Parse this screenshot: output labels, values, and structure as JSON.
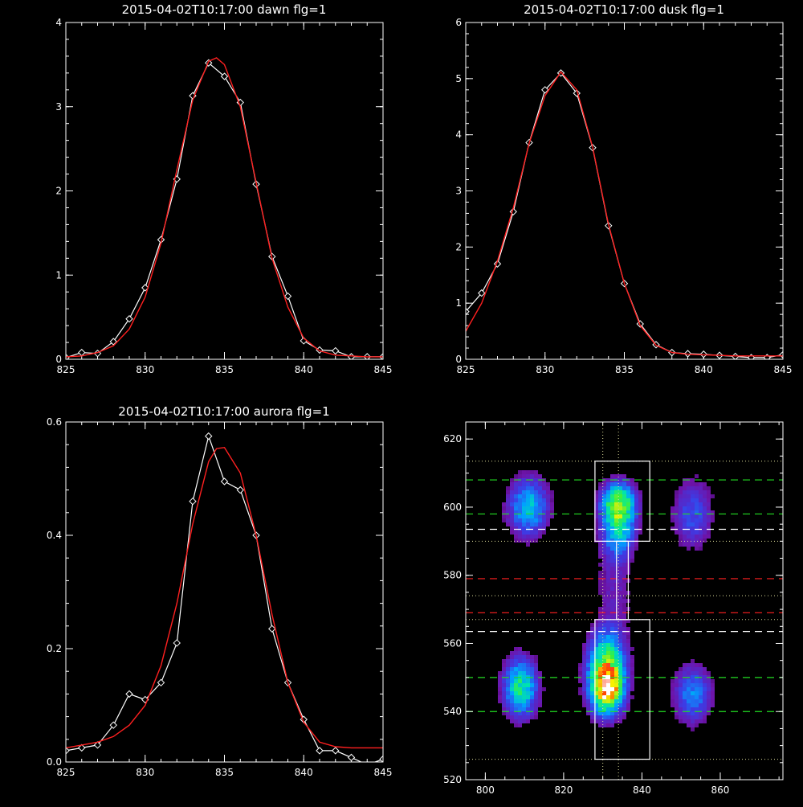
{
  "colors": {
    "background": "#000000",
    "axes": "#ffffff",
    "observed": "#ffffff",
    "fit": "#ff2020",
    "guide_green": "#22dd22",
    "guide_white": "#ffffff",
    "guide_red": "#ff2020",
    "box": "#ffffff"
  },
  "chart_data": [
    {
      "id": "dawn",
      "type": "line",
      "title": "2015-04-02T10:17:00 dawn flg=1",
      "xlim": [
        825,
        845
      ],
      "ylim": [
        0,
        4
      ],
      "xticks": [
        825,
        830,
        835,
        840,
        845
      ],
      "yticks": [
        0,
        1,
        2,
        3,
        4
      ],
      "xtick_labels": [
        "825",
        "830",
        "835",
        "840",
        "845"
      ],
      "ytick_labels": [
        "0",
        "1",
        "2",
        "3",
        "4"
      ],
      "series": [
        {
          "role": "observed",
          "markers": "diamond",
          "x": [
            825,
            826,
            827,
            828,
            829,
            830,
            831,
            832,
            833,
            834,
            835,
            836,
            837,
            838,
            839,
            840,
            841,
            842,
            843,
            844,
            845
          ],
          "y": [
            0.02,
            0.08,
            0.07,
            0.21,
            0.48,
            0.85,
            1.42,
            2.14,
            3.13,
            3.52,
            3.36,
            3.05,
            2.08,
            1.22,
            0.75,
            0.22,
            0.11,
            0.1,
            0.03,
            0.03,
            0.03
          ]
        },
        {
          "role": "fit",
          "x": [
            825,
            826,
            827,
            828,
            829,
            830,
            831,
            832,
            833,
            834,
            834.5,
            835,
            836,
            837,
            838,
            839,
            840,
            841,
            842,
            843,
            844,
            845
          ],
          "y": [
            0.03,
            0.04,
            0.08,
            0.16,
            0.36,
            0.74,
            1.38,
            2.25,
            3.08,
            3.54,
            3.58,
            3.5,
            3.0,
            2.1,
            1.2,
            0.62,
            0.25,
            0.1,
            0.05,
            0.04,
            0.03,
            0.03
          ]
        }
      ]
    },
    {
      "id": "dusk",
      "type": "line",
      "title": "2015-04-02T10:17:00 dusk flg=1",
      "xlim": [
        825,
        845
      ],
      "ylim": [
        0,
        6
      ],
      "xticks": [
        825,
        830,
        835,
        840,
        845
      ],
      "yticks": [
        0,
        1,
        2,
        3,
        4,
        5,
        6
      ],
      "xtick_labels": [
        "825",
        "830",
        "835",
        "840",
        "845"
      ],
      "ytick_labels": [
        "0",
        "1",
        "2",
        "3",
        "4",
        "5",
        "6"
      ],
      "series": [
        {
          "role": "observed",
          "markers": "diamond",
          "x": [
            825,
            826,
            827,
            828,
            829,
            830,
            831,
            832,
            833,
            834,
            835,
            836,
            837,
            838,
            839,
            840,
            841,
            842,
            843,
            844,
            845
          ],
          "y": [
            0.85,
            1.18,
            1.7,
            2.63,
            3.86,
            4.8,
            5.1,
            4.74,
            3.77,
            2.38,
            1.35,
            0.63,
            0.26,
            0.12,
            0.1,
            0.09,
            0.07,
            0.05,
            0.03,
            0.03,
            0.08
          ]
        },
        {
          "role": "fit",
          "x": [
            825,
            826,
            827,
            828,
            829,
            830,
            831,
            832,
            833,
            834,
            835,
            836,
            837,
            838,
            839,
            840,
            841,
            842,
            843,
            844,
            845
          ],
          "y": [
            0.5,
            1.0,
            1.75,
            2.7,
            3.85,
            4.7,
            5.12,
            4.8,
            3.78,
            2.4,
            1.35,
            0.6,
            0.25,
            0.12,
            0.09,
            0.08,
            0.07,
            0.06,
            0.06,
            0.06,
            0.06
          ]
        }
      ]
    },
    {
      "id": "aurora",
      "type": "line",
      "title": "2015-04-02T10:17:00 aurora flg=1",
      "xlim": [
        825,
        845
      ],
      "ylim": [
        0,
        0.6
      ],
      "xticks": [
        825,
        830,
        835,
        840,
        845
      ],
      "yticks": [
        0,
        0.2,
        0.4,
        0.6
      ],
      "xtick_labels": [
        "825",
        "830",
        "835",
        "840",
        "845"
      ],
      "ytick_labels": [
        "0.0",
        "0.2",
        "0.4",
        "0.6"
      ],
      "series": [
        {
          "role": "observed",
          "markers": "diamond",
          "x": [
            825,
            826,
            827,
            828,
            829,
            830,
            831,
            832,
            833,
            834,
            835,
            836,
            837,
            838,
            839,
            840,
            841,
            842,
            843,
            844,
            845
          ],
          "y": [
            0.02,
            0.025,
            0.03,
            0.065,
            0.12,
            0.11,
            0.14,
            0.21,
            0.46,
            0.575,
            0.495,
            0.48,
            0.4,
            0.235,
            0.14,
            0.075,
            0.02,
            0.02,
            0.008,
            -0.005,
            0.005
          ]
        },
        {
          "role": "fit",
          "x": [
            825,
            826,
            827,
            828,
            829,
            830,
            831,
            832,
            833,
            834,
            834.5,
            835,
            836,
            837,
            838,
            839,
            840,
            841,
            842,
            843,
            844,
            845
          ],
          "y": [
            0.025,
            0.03,
            0.035,
            0.045,
            0.065,
            0.1,
            0.17,
            0.28,
            0.42,
            0.53,
            0.553,
            0.555,
            0.51,
            0.4,
            0.26,
            0.14,
            0.07,
            0.035,
            0.027,
            0.025,
            0.025,
            0.025
          ]
        }
      ]
    },
    {
      "id": "spectral-image",
      "type": "heatmap",
      "xlim": [
        795,
        876
      ],
      "ylim": [
        520,
        625
      ],
      "xticks": [
        800,
        820,
        840,
        860
      ],
      "yticks": [
        520,
        540,
        560,
        580,
        600,
        620
      ],
      "xtick_labels": [
        "800",
        "820",
        "840",
        "860"
      ],
      "ytick_labels": [
        "520",
        "540",
        "560",
        "580",
        "600",
        "620"
      ],
      "blobs": [
        {
          "x": 831,
          "y": 547,
          "sx": 2.5,
          "sy": 4.5,
          "amp": 1.0
        },
        {
          "x": 831,
          "y": 555,
          "sx": 2.8,
          "sy": 5.5,
          "amp": 0.45
        },
        {
          "x": 834,
          "y": 601,
          "sx": 2.5,
          "sy": 3.5,
          "amp": 0.6
        },
        {
          "x": 834,
          "y": 594,
          "sx": 2.5,
          "sy": 5.0,
          "amp": 0.35
        },
        {
          "x": 809,
          "y": 547,
          "sx": 2.5,
          "sy": 5.0,
          "amp": 0.45
        },
        {
          "x": 811,
          "y": 600,
          "sx": 3.0,
          "sy": 5.0,
          "amp": 0.32
        },
        {
          "x": 853,
          "y": 545,
          "sx": 2.8,
          "sy": 5.0,
          "amp": 0.22
        },
        {
          "x": 853,
          "y": 598,
          "sx": 3.0,
          "sy": 6.0,
          "amp": 0.15
        },
        {
          "x": 833,
          "y": 577,
          "sx": 3.0,
          "sy": 12.0,
          "amp": 0.06
        }
      ],
      "vlines_dotted": [
        830,
        834
      ],
      "hlines_green_dashed": [
        540,
        550,
        598,
        608
      ],
      "hlines_white_dashed": [
        563.5,
        593.5
      ],
      "hlines_red_dashed": [
        569,
        579
      ],
      "hlines_dotted": [
        526,
        567,
        574,
        590,
        613.5
      ],
      "boxes": [
        {
          "x0": 828,
          "x1": 842,
          "y0": 526,
          "y1": 567
        },
        {
          "x0": 828,
          "x1": 842,
          "y0": 590,
          "y1": 613.5
        },
        {
          "x0": 833.5,
          "x1": 836.5,
          "y0": 567,
          "y1": 590
        }
      ]
    }
  ]
}
